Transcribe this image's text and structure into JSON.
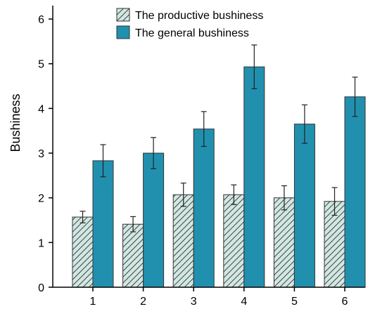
{
  "chart_data": {
    "type": "bar",
    "title": "",
    "xlabel": "",
    "ylabel": "Bushiness",
    "categories": [
      "1",
      "2",
      "3",
      "4",
      "5",
      "6"
    ],
    "ylim": [
      0,
      6.3
    ],
    "yticks": [
      0,
      1,
      2,
      3,
      4,
      5,
      6
    ],
    "grid": false,
    "legend": "top-center",
    "series": [
      {
        "name": "The productive bushiness",
        "values": [
          1.57,
          1.41,
          2.07,
          2.07,
          2.0,
          1.92
        ],
        "error": [
          0.13,
          0.17,
          0.26,
          0.22,
          0.27,
          0.31
        ],
        "color": "#d5e6e2",
        "hatch_color": "#2e4a45",
        "pattern": "hatched"
      },
      {
        "name": "The general bushiness",
        "values": [
          2.83,
          3.0,
          3.54,
          4.93,
          3.65,
          4.26
        ],
        "error": [
          0.36,
          0.35,
          0.39,
          0.49,
          0.43,
          0.44
        ],
        "color": "#2190af",
        "pattern": "solid"
      }
    ]
  }
}
